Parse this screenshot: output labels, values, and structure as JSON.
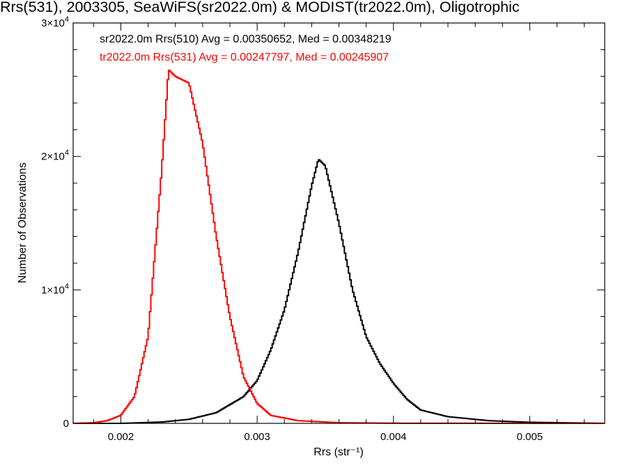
{
  "chart_data": {
    "type": "step-histogram",
    "title": "Rrs(531), 2003305, SeaWiFS(sr2022.0m) & MODIST(tr2022.0m), Oligotrophic",
    "xlabel": "Rrs (str⁻¹)",
    "ylabel": "Number of Observations",
    "xlim": [
      0.00165,
      0.00555
    ],
    "ylim": [
      0,
      30000
    ],
    "x_ticks": [
      0.002,
      0.003,
      0.004,
      0.005
    ],
    "x_tick_labels": [
      "0.002",
      "0.003",
      "0.004",
      "0.005"
    ],
    "y_ticks": [
      0,
      10000,
      20000,
      30000
    ],
    "y_tick_labels": [
      {
        "mantissa": "0",
        "exp": ""
      },
      {
        "mantissa": "1×10",
        "exp": "4"
      },
      {
        "mantissa": "2×10",
        "exp": "4"
      },
      {
        "mantissa": "3×10",
        "exp": "4"
      }
    ],
    "annotations": [
      {
        "text": "sr2022.0m Rrs(510) Avg = 0.00350652, Med = 0.00348219",
        "color": "#000000"
      },
      {
        "text": "tr2022.0m Rrs(531) Avg = 0.00247797, Med = 0.00245907",
        "color": "#ff0000"
      }
    ],
    "series": [
      {
        "color": "#000000",
        "points": [
          [
            0.00165,
            0
          ],
          [
            0.002,
            0
          ],
          [
            0.0023,
            100
          ],
          [
            0.0025,
            300
          ],
          [
            0.0027,
            800
          ],
          [
            0.0029,
            2000
          ],
          [
            0.003,
            3200
          ],
          [
            0.0031,
            5500
          ],
          [
            0.0032,
            8500
          ],
          [
            0.0033,
            12800
          ],
          [
            0.0034,
            17800
          ],
          [
            0.00345,
            19800
          ],
          [
            0.0035,
            19300
          ],
          [
            0.0036,
            15000
          ],
          [
            0.0037,
            10000
          ],
          [
            0.0038,
            6500
          ],
          [
            0.0039,
            4500
          ],
          [
            0.004,
            3000
          ],
          [
            0.0041,
            1800
          ],
          [
            0.0042,
            1000
          ],
          [
            0.0044,
            500
          ],
          [
            0.0047,
            200
          ],
          [
            0.005,
            80
          ],
          [
            0.00555,
            0
          ]
        ]
      },
      {
        "color": "#ff0000",
        "points": [
          [
            0.00165,
            0
          ],
          [
            0.0018,
            50
          ],
          [
            0.0019,
            200
          ],
          [
            0.002,
            600
          ],
          [
            0.0021,
            2000
          ],
          [
            0.0022,
            6500
          ],
          [
            0.0023,
            19000
          ],
          [
            0.00235,
            26500
          ],
          [
            0.0024,
            26000
          ],
          [
            0.0025,
            25500
          ],
          [
            0.0026,
            21000
          ],
          [
            0.0027,
            14000
          ],
          [
            0.0028,
            8000
          ],
          [
            0.0029,
            3500
          ],
          [
            0.003,
            1500
          ],
          [
            0.0031,
            600
          ],
          [
            0.0033,
            200
          ],
          [
            0.0036,
            50
          ],
          [
            0.004,
            10
          ],
          [
            0.00555,
            0
          ]
        ]
      }
    ]
  }
}
